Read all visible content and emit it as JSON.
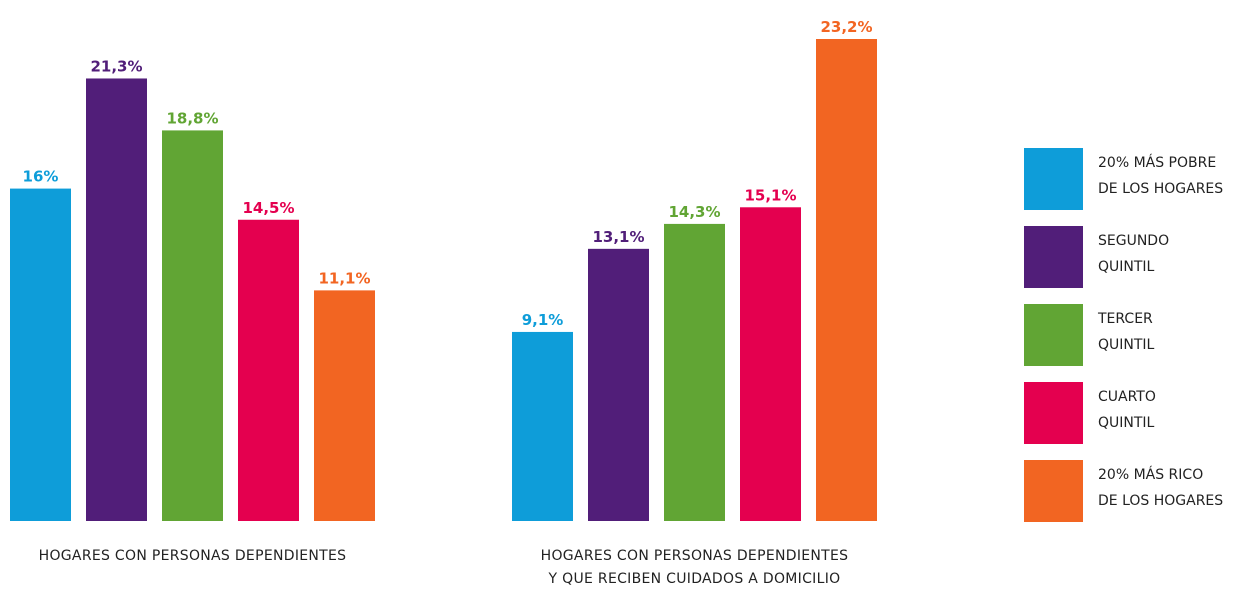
{
  "colors": {
    "q1": "#0E9DD9",
    "q2": "#511E79",
    "q3": "#61A534",
    "q4": "#E4004F",
    "q5": "#F26522"
  },
  "legend": [
    {
      "label": "20% MÁS POBRE\nDE LOS HOGARES",
      "color_key": "q1"
    },
    {
      "label": "SEGUNDO\nQUINTIL",
      "color_key": "q2"
    },
    {
      "label": "TERCER\nQUINTIL",
      "color_key": "q3"
    },
    {
      "label": "CUARTO\nQUINTIL",
      "color_key": "q4"
    },
    {
      "label": "20% MÁS RICO\nDE LOS HOGARES",
      "color_key": "q5"
    }
  ],
  "chart_data": {
    "type": "bar",
    "value_suffix": "%",
    "ylim": [
      0,
      23.2
    ],
    "grid": false,
    "legend_position": "right",
    "categories": [
      "20% MÁS POBRE DE LOS HOGARES",
      "SEGUNDO QUINTIL",
      "TERCER QUINTIL",
      "CUARTO QUINTIL",
      "20% MÁS RICO DE LOS HOGARES"
    ],
    "groups": [
      {
        "label_lines": [
          "HOGARES CON PERSONAS DEPENDIENTES"
        ],
        "values": [
          16,
          21.3,
          18.8,
          14.5,
          11.1
        ],
        "value_labels": [
          "16%",
          "21,3%",
          "18,8%",
          "14,5%",
          "11,1%"
        ]
      },
      {
        "label_lines": [
          "HOGARES CON PERSONAS DEPENDIENTES",
          "Y QUE RECIBEN CUIDADOS A DOMICILIO"
        ],
        "values": [
          9.1,
          13.1,
          14.3,
          15.1,
          23.2
        ],
        "value_labels": [
          "9,1%",
          "13,1%",
          "14,3%",
          "15,1%",
          "23,2%"
        ]
      }
    ]
  }
}
